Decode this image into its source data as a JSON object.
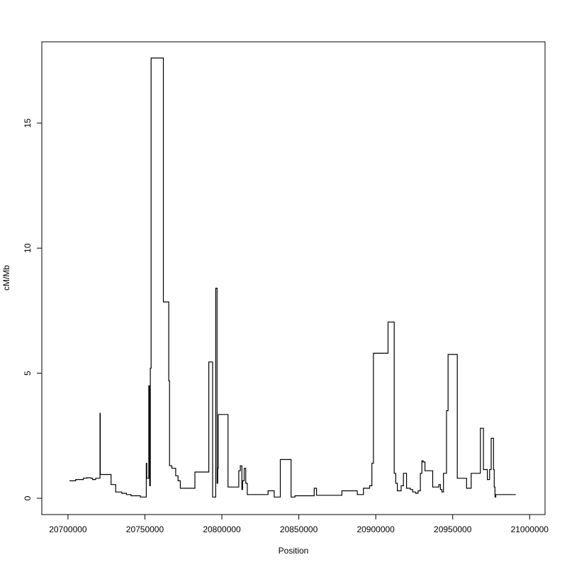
{
  "chart_data": {
    "type": "line",
    "step": true,
    "xlabel": "Position",
    "ylabel": "cM/Mb",
    "xlim": [
      20683000,
      21010000
    ],
    "ylim": [
      -0.65,
      18.25
    ],
    "x_ticks": [
      20700000,
      20750000,
      20800000,
      20850000,
      20900000,
      20950000,
      21000000
    ],
    "x_tick_labels": [
      "20700000",
      "20750000",
      "20800000",
      "20850000",
      "20900000",
      "20950000",
      "21000000"
    ],
    "y_ticks": [
      0,
      5,
      10,
      15
    ],
    "y_tick_labels": [
      "0",
      "5",
      "10",
      "15"
    ],
    "grid": false,
    "legend": "none",
    "line_color": "#000000",
    "series": [
      {
        "x": [
          20701000,
          20705000,
          20710000,
          20712000,
          20715000,
          20716000,
          20718000,
          20720500,
          20720800,
          20721000,
          20723500,
          20728000,
          20731000,
          20735000,
          20738000,
          20741000,
          20747000,
          20748000,
          20750900,
          20751200,
          20752500,
          20753100,
          20753500,
          20754000,
          20762000,
          20765500,
          20766000,
          20767500,
          20770000,
          20771500,
          20773000,
          20782500,
          20791500,
          20794000,
          20796000,
          20796900,
          20797300,
          20797700,
          20799000,
          20804000,
          20811000,
          20812000,
          20813000,
          20813500,
          20814500,
          20815500,
          20816500,
          20818000,
          20830000,
          20834000,
          20836500,
          20838000,
          20842000,
          20845000,
          20846200,
          20847500,
          20860000,
          20861500,
          20865000,
          20878000,
          20880000,
          20888000,
          20890000,
          20892000,
          20896000,
          20897500,
          20898500,
          20904000,
          20908000,
          20912000,
          20913000,
          20914000,
          20916500,
          20918000,
          20920000,
          20922500,
          20924000,
          20926000,
          20927500,
          20929000,
          20930000,
          20930800,
          20932000,
          20934000,
          20937000,
          20941000,
          20942000,
          20943000,
          20944000,
          20946000,
          20946500,
          20947000,
          20949000,
          20953000,
          20959000,
          20960000,
          20962000,
          20968000,
          20970000,
          20972500,
          20974000,
          20975000,
          20976500,
          20977000,
          20977500,
          20978000,
          20982000,
          20991000
        ],
        "y": [
          0.7,
          0.75,
          0.8,
          0.82,
          0.8,
          0.75,
          0.8,
          0.8,
          3.4,
          0.95,
          0.95,
          0.55,
          0.25,
          0.2,
          0.15,
          0.1,
          0.05,
          0.05,
          1.4,
          0.8,
          4.5,
          0.5,
          5.2,
          17.6,
          7.85,
          4.7,
          1.3,
          1.2,
          0.9,
          0.7,
          0.4,
          1.05,
          5.45,
          0.05,
          8.4,
          0.6,
          1.2,
          3.35,
          3.35,
          0.45,
          1.1,
          1.3,
          0.35,
          0.7,
          1.2,
          0.6,
          0.15,
          0.15,
          0.3,
          0.05,
          0.05,
          1.55,
          1.55,
          0.05,
          0.05,
          0.1,
          0.4,
          0.12,
          0.12,
          0.3,
          0.3,
          0.15,
          0.15,
          0.4,
          0.5,
          1.4,
          5.8,
          5.8,
          7.05,
          1.0,
          0.6,
          0.3,
          0.5,
          1.0,
          0.4,
          0.35,
          0.25,
          0.2,
          0.3,
          1.0,
          1.5,
          1.45,
          1.1,
          1.1,
          0.45,
          0.55,
          0.35,
          0.25,
          1.0,
          3.5,
          3.5,
          5.75,
          5.75,
          0.8,
          0.4,
          0.4,
          1.0,
          2.8,
          1.15,
          0.75,
          1.15,
          2.4,
          1.15,
          0.45,
          0.05,
          0.15,
          0.15,
          0.15
        ]
      }
    ]
  }
}
